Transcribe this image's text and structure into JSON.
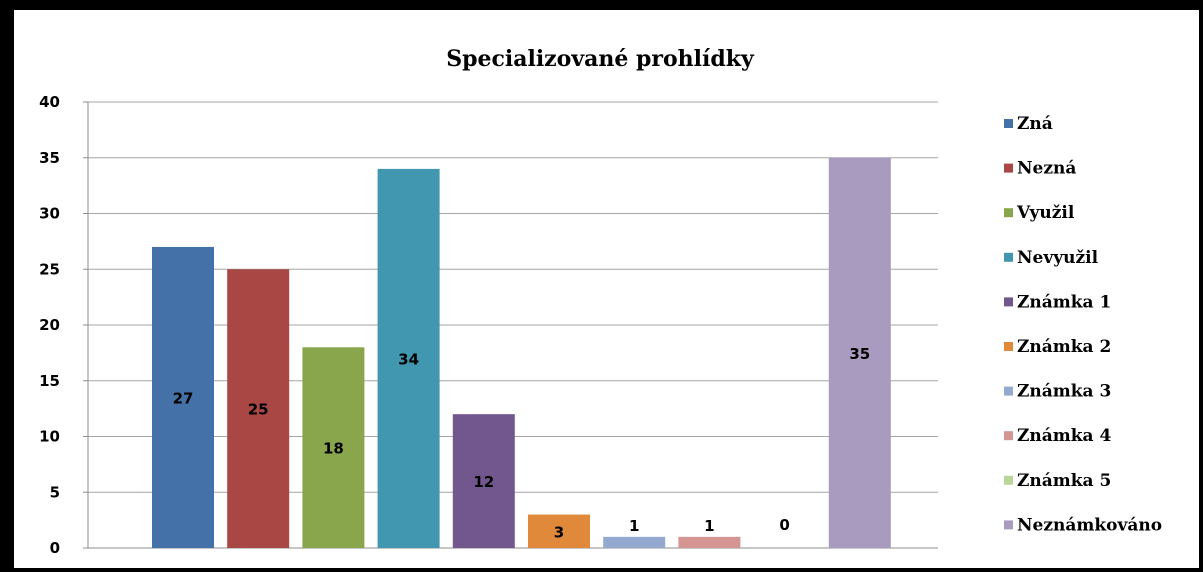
{
  "chart_data": {
    "type": "bar",
    "title": "Specializované prohlídky",
    "ylim": [
      0,
      40
    ],
    "yticks": [
      0,
      5,
      10,
      15,
      20,
      25,
      30,
      35,
      40
    ],
    "grid": true,
    "legend_position": "right",
    "series": [
      {
        "name": "Zná",
        "value": 27,
        "color": "#4472A8"
      },
      {
        "name": "Nezná",
        "value": 25,
        "color": "#A84744"
      },
      {
        "name": "Využil",
        "value": 18,
        "color": "#89A64C"
      },
      {
        "name": "Nevyužil",
        "value": 34,
        "color": "#4197AF"
      },
      {
        "name": "Známka 1",
        "value": 12,
        "color": "#72578F"
      },
      {
        "name": "Známka 2",
        "value": 3,
        "color": "#E0893A"
      },
      {
        "name": "Známka 3",
        "value": 1,
        "color": "#93A9D0"
      },
      {
        "name": "Známka 4",
        "value": 1,
        "color": "#D49593"
      },
      {
        "name": "Známka 5",
        "value": 0,
        "color": "#B9D69A"
      },
      {
        "name": "Neznámkováno",
        "value": 35,
        "color": "#A99BC0"
      }
    ]
  }
}
